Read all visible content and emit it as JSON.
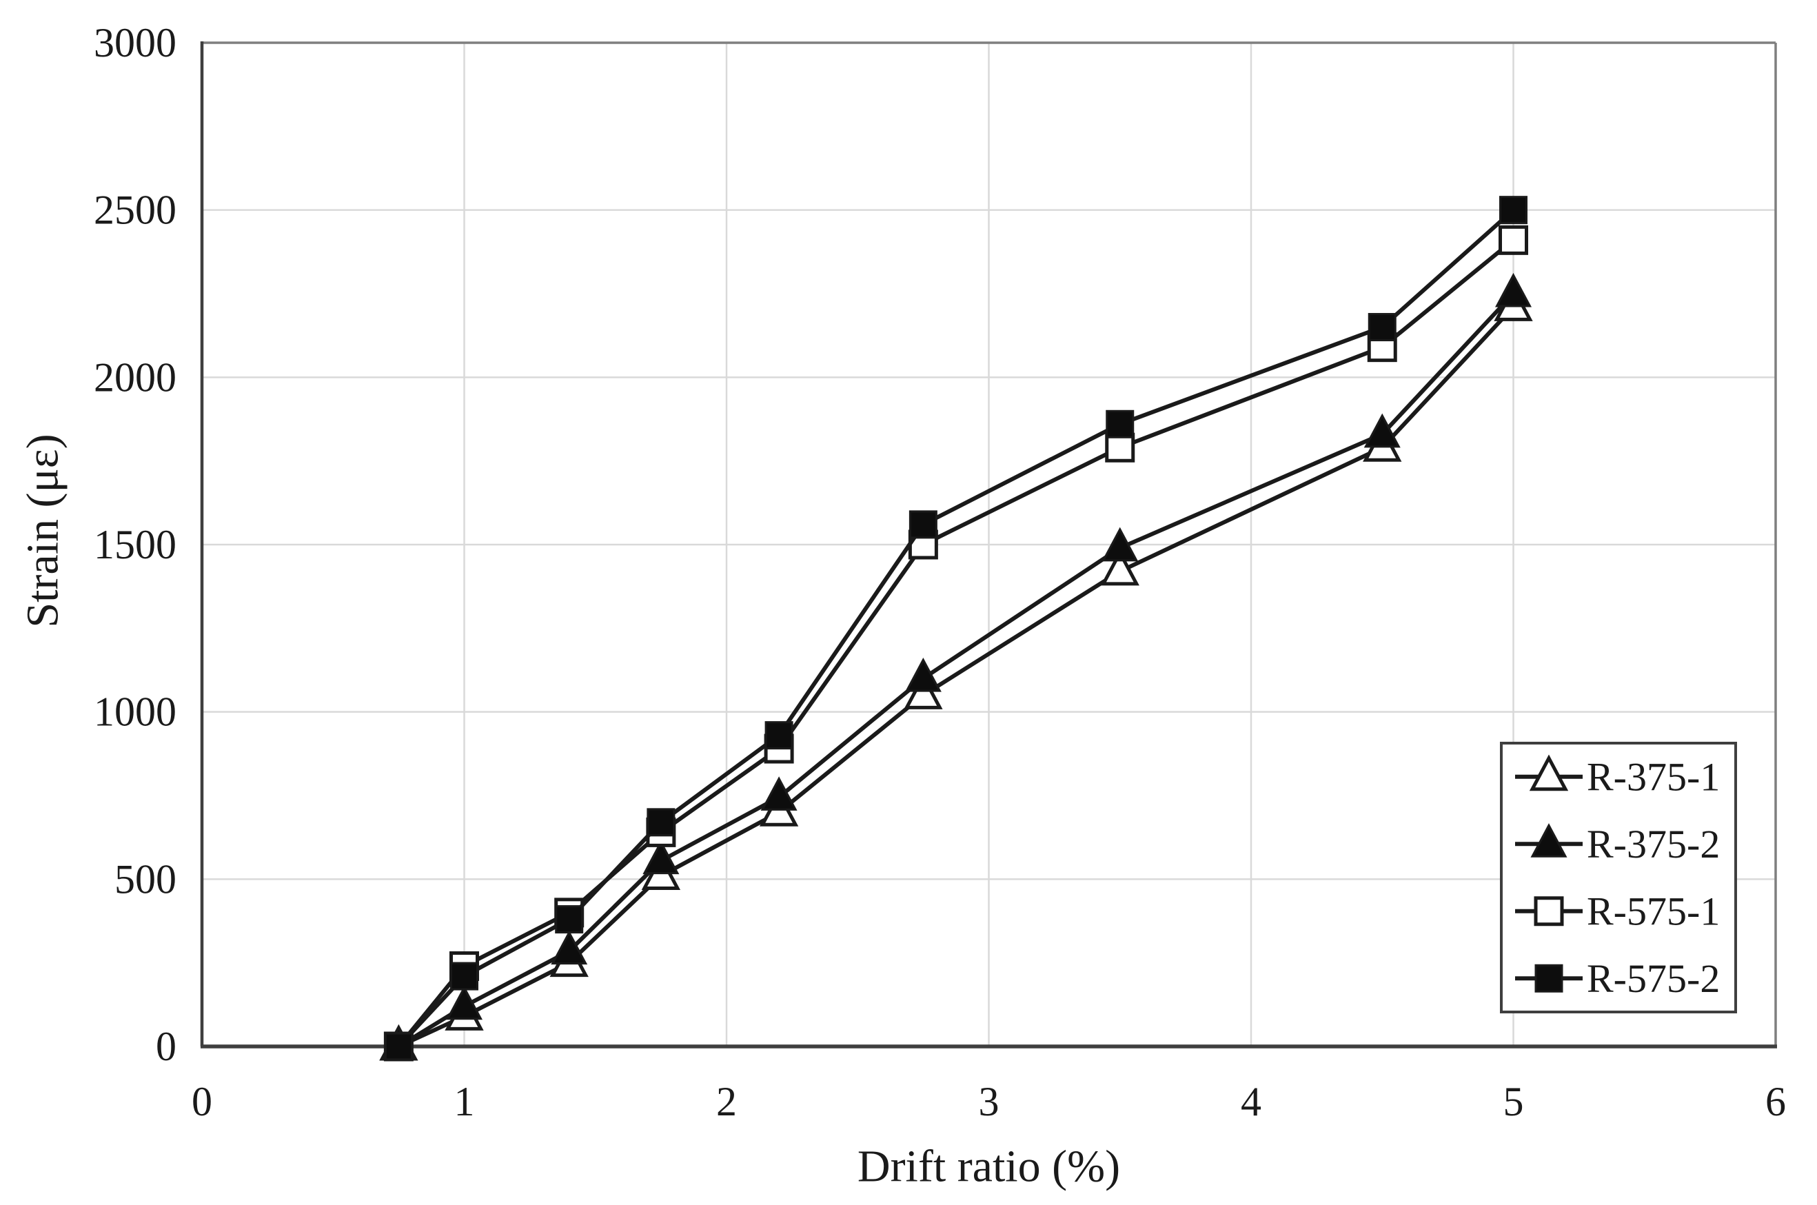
{
  "chart_data": {
    "type": "line",
    "title": "",
    "xlabel": "Drift ratio (%)",
    "ylabel": "Strain (με)",
    "xlim": [
      0,
      6
    ],
    "ylim": [
      0,
      3000
    ],
    "x_ticks": [
      "0",
      "1",
      "2",
      "3",
      "4",
      "5",
      "6"
    ],
    "y_ticks": [
      "0",
      "500",
      "1000",
      "1500",
      "2000",
      "2500",
      "3000"
    ],
    "grid": true,
    "legend_position": "lower-right",
    "x": [
      0.75,
      1,
      1.4,
      1.75,
      2.2,
      2.75,
      3.5,
      4.5,
      5
    ],
    "series": [
      {
        "name": "R-375-1",
        "marker": "triangle-open",
        "values": [
          0,
          90,
          250,
          510,
          700,
          1050,
          1420,
          1790,
          2210
        ]
      },
      {
        "name": "R-375-2",
        "marker": "triangle-filled",
        "values": [
          0,
          120,
          285,
          555,
          745,
          1100,
          1490,
          1830,
          2250
        ]
      },
      {
        "name": "R-575-1",
        "marker": "square-open",
        "values": [
          0,
          240,
          400,
          640,
          890,
          1500,
          1790,
          2090,
          2410
        ]
      },
      {
        "name": "R-575-2",
        "marker": "square-filled",
        "values": [
          0,
          210,
          380,
          670,
          930,
          1560,
          1860,
          2150,
          2500
        ]
      }
    ],
    "colors": {
      "line": "#1a1a1a",
      "marker_fill": "#0d0d0d",
      "marker_open_fill": "#ffffff",
      "axis": "#3f3f3f",
      "plot_border": "#7f7f7f",
      "grid": "#d9d9d9",
      "text": "#1a1a1a",
      "legend_border": "#3f3f3f",
      "background": "#ffffff"
    }
  }
}
